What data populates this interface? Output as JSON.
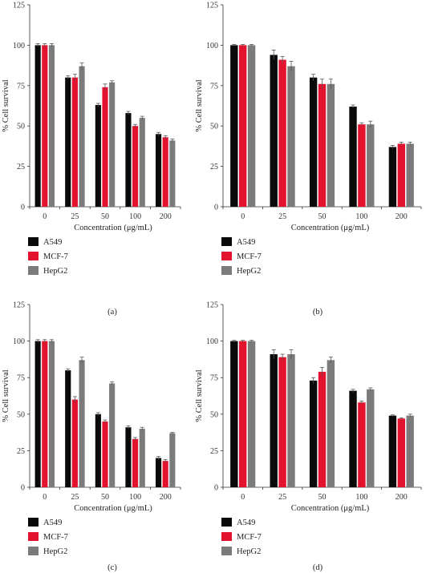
{
  "colors": {
    "A549": "#0a0a0a",
    "MCF-7": "#e3122e",
    "HepG2": "#7b7b7b",
    "axis": "#333333",
    "errorbar": "#555555"
  },
  "chart_data": [
    {
      "type": "bar",
      "panel_label": "(a)",
      "categories": [
        "0",
        "25",
        "50",
        "100",
        "200"
      ],
      "xlabel": "Concentration (μg/mL)",
      "ylabel": "% Cell survival",
      "ylim": [
        0,
        125
      ],
      "yticks": [
        "0",
        "25",
        "50",
        "75",
        "100",
        "125"
      ],
      "legend_position": "bottom-left",
      "series": [
        {
          "name": "A549",
          "color": "#0a0a0a",
          "values": [
            100,
            80,
            63,
            58,
            45
          ],
          "errors": [
            1,
            1,
            1,
            1,
            1
          ]
        },
        {
          "name": "MCF-7",
          "color": "#e3122e",
          "values": [
            100,
            80,
            74,
            50,
            43
          ],
          "errors": [
            1,
            2,
            2,
            1,
            1
          ]
        },
        {
          "name": "HepG2",
          "color": "#7b7b7b",
          "values": [
            100,
            87,
            77,
            55,
            41
          ],
          "errors": [
            1,
            2,
            1,
            1,
            1
          ]
        }
      ]
    },
    {
      "type": "bar",
      "panel_label": "(b)",
      "categories": [
        "0",
        "25",
        "50",
        "100",
        "200"
      ],
      "xlabel": "Concentration (μg/mL)",
      "ylabel": "% Cell survival",
      "ylim": [
        0,
        125
      ],
      "yticks": [
        "0",
        "25",
        "50",
        "75",
        "100",
        "125"
      ],
      "legend_position": "bottom-left",
      "series": [
        {
          "name": "A549",
          "color": "#0a0a0a",
          "values": [
            100,
            94,
            80,
            62,
            37
          ],
          "errors": [
            0.5,
            3,
            2,
            1,
            1
          ]
        },
        {
          "name": "MCF-7",
          "color": "#e3122e",
          "values": [
            100,
            91,
            76,
            51,
            39
          ],
          "errors": [
            0.5,
            2,
            3,
            1,
            1
          ]
        },
        {
          "name": "HepG2",
          "color": "#7b7b7b",
          "values": [
            100,
            87,
            76,
            51,
            39
          ],
          "errors": [
            0.5,
            3,
            3,
            2,
            1
          ]
        }
      ]
    },
    {
      "type": "bar",
      "panel_label": "(c)",
      "categories": [
        "0",
        "25",
        "50",
        "100",
        "200"
      ],
      "xlabel": "Concentration (μg/mL)",
      "ylabel": "% Cell survival",
      "ylim": [
        0,
        125
      ],
      "yticks": [
        "0",
        "25",
        "50",
        "75",
        "100",
        "125"
      ],
      "legend_position": "bottom-left",
      "series": [
        {
          "name": "A549",
          "color": "#0a0a0a",
          "values": [
            100,
            80,
            50,
            41,
            20
          ],
          "errors": [
            1,
            1,
            1,
            1,
            1
          ]
        },
        {
          "name": "MCF-7",
          "color": "#e3122e",
          "values": [
            100,
            60,
            45,
            33,
            18
          ],
          "errors": [
            1,
            2,
            1,
            1,
            1
          ]
        },
        {
          "name": "HepG2",
          "color": "#7b7b7b",
          "values": [
            100,
            87,
            71,
            40,
            37
          ],
          "errors": [
            1,
            2,
            1,
            1,
            0.5
          ]
        }
      ]
    },
    {
      "type": "bar",
      "panel_label": "(d)",
      "categories": [
        "0",
        "25",
        "50",
        "100",
        "200"
      ],
      "xlabel": "Concentration (μg/mL)",
      "ylabel": "% Cell survival",
      "ylim": [
        0,
        125
      ],
      "yticks": [
        "0",
        "25",
        "50",
        "75",
        "100",
        "125"
      ],
      "legend_position": "bottom-left",
      "series": [
        {
          "name": "A549",
          "color": "#0a0a0a",
          "values": [
            100,
            91,
            73,
            66,
            49
          ],
          "errors": [
            0.5,
            3,
            2,
            1,
            0.5
          ]
        },
        {
          "name": "MCF-7",
          "color": "#e3122e",
          "values": [
            100,
            89,
            79,
            58,
            47
          ],
          "errors": [
            0.5,
            2,
            3,
            1,
            0.5
          ]
        },
        {
          "name": "HepG2",
          "color": "#7b7b7b",
          "values": [
            100,
            91,
            87,
            67,
            49
          ],
          "errors": [
            0.5,
            3,
            2,
            1,
            1
          ]
        }
      ]
    }
  ]
}
